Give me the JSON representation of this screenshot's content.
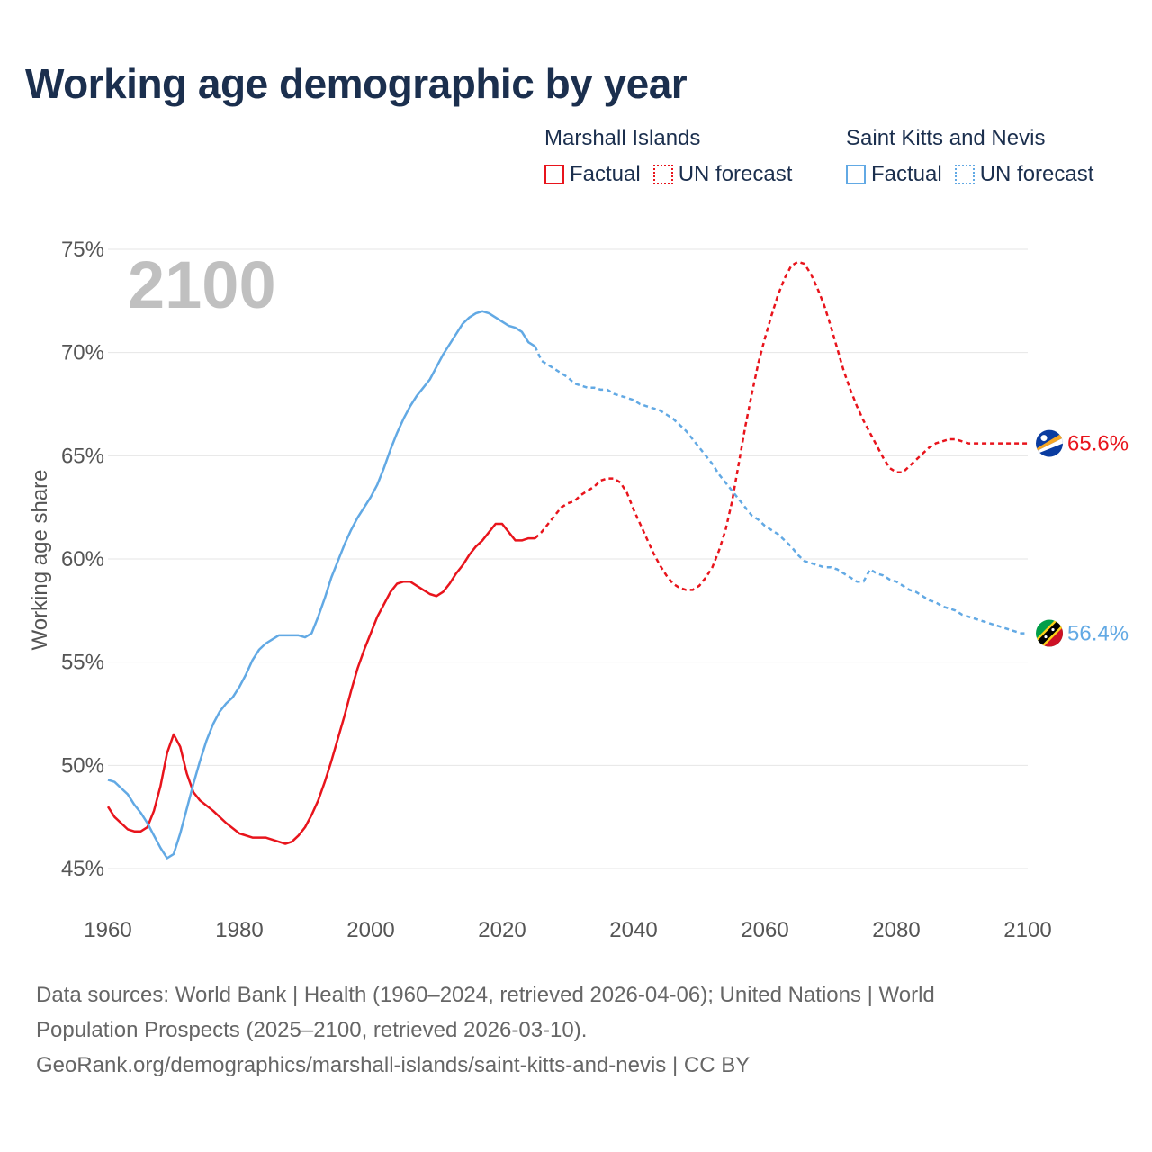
{
  "title": "Working age demographic by year",
  "legend": [
    {
      "group": "Marshall Islands",
      "color": "#e8141c",
      "factual_label": "Factual",
      "forecast_label": "UN forecast"
    },
    {
      "group": "Saint Kitts and Nevis",
      "color": "#62a9e4",
      "factual_label": "Factual",
      "forecast_label": "UN forecast"
    }
  ],
  "year_watermark": "2100",
  "sources": {
    "line1": "Data sources: World Bank | Health (1960–2024, retrieved 2026-04-06); United Nations | World",
    "line2": "Population Prospects (2025–2100, retrieved 2026-03-10).",
    "line3": "GeoRank.org/demographics/marshall-islands/saint-kitts-and-nevis | CC BY"
  },
  "chart_data": {
    "type": "line",
    "title": "Working age demographic by year",
    "xlabel": "",
    "ylabel": "Working age share",
    "xlim": [
      1960,
      2100
    ],
    "ylim": [
      45,
      75
    ],
    "x_ticks": [
      1960,
      1980,
      2000,
      2020,
      2040,
      2060,
      2080,
      2100
    ],
    "y_ticks": [
      45,
      50,
      55,
      60,
      65,
      70,
      75
    ],
    "y_tick_labels": [
      "45%",
      "50%",
      "55%",
      "60%",
      "65%",
      "70%",
      "75%"
    ],
    "grid": true,
    "forecast_start_year": 2025,
    "series": [
      {
        "name": "Marshall Islands",
        "color": "#e8141c",
        "end_label": "65.6%",
        "points": [
          [
            1960,
            48.0
          ],
          [
            1961,
            47.5
          ],
          [
            1963,
            46.9
          ],
          [
            1964,
            46.8
          ],
          [
            1965,
            46.8
          ],
          [
            1966,
            47.0
          ],
          [
            1967,
            47.8
          ],
          [
            1968,
            49.0
          ],
          [
            1969,
            50.6
          ],
          [
            1970,
            51.5
          ],
          [
            1971,
            50.9
          ],
          [
            1972,
            49.6
          ],
          [
            1973,
            48.7
          ],
          [
            1974,
            48.3
          ],
          [
            1976,
            47.8
          ],
          [
            1978,
            47.2
          ],
          [
            1980,
            46.7
          ],
          [
            1982,
            46.5
          ],
          [
            1984,
            46.5
          ],
          [
            1986,
            46.3
          ],
          [
            1987,
            46.2
          ],
          [
            1988,
            46.3
          ],
          [
            1989,
            46.6
          ],
          [
            1990,
            47.0
          ],
          [
            1991,
            47.6
          ],
          [
            1992,
            48.3
          ],
          [
            1993,
            49.2
          ],
          [
            1994,
            50.2
          ],
          [
            1995,
            51.3
          ],
          [
            1996,
            52.4
          ],
          [
            1997,
            53.6
          ],
          [
            1998,
            54.7
          ],
          [
            1999,
            55.6
          ],
          [
            2000,
            56.4
          ],
          [
            2001,
            57.2
          ],
          [
            2002,
            57.8
          ],
          [
            2003,
            58.4
          ],
          [
            2004,
            58.8
          ],
          [
            2005,
            58.9
          ],
          [
            2006,
            58.9
          ],
          [
            2007,
            58.7
          ],
          [
            2008,
            58.5
          ],
          [
            2009,
            58.3
          ],
          [
            2010,
            58.2
          ],
          [
            2011,
            58.4
          ],
          [
            2012,
            58.8
          ],
          [
            2013,
            59.3
          ],
          [
            2014,
            59.7
          ],
          [
            2015,
            60.2
          ],
          [
            2016,
            60.6
          ],
          [
            2017,
            60.9
          ],
          [
            2018,
            61.3
          ],
          [
            2019,
            61.7
          ],
          [
            2020,
            61.7
          ],
          [
            2021,
            61.3
          ],
          [
            2022,
            60.9
          ],
          [
            2023,
            60.9
          ],
          [
            2024,
            61.0
          ],
          [
            2025,
            61.0
          ],
          [
            2026,
            61.3
          ],
          [
            2027,
            61.7
          ],
          [
            2028,
            62.1
          ],
          [
            2029,
            62.5
          ],
          [
            2030,
            62.7
          ],
          [
            2031,
            62.8
          ],
          [
            2032,
            63.1
          ],
          [
            2033,
            63.3
          ],
          [
            2034,
            63.5
          ],
          [
            2035,
            63.8
          ],
          [
            2036,
            63.9
          ],
          [
            2037,
            63.9
          ],
          [
            2038,
            63.7
          ],
          [
            2039,
            63.2
          ],
          [
            2040,
            62.4
          ],
          [
            2041,
            61.7
          ],
          [
            2042,
            61.0
          ],
          [
            2043,
            60.3
          ],
          [
            2044,
            59.7
          ],
          [
            2045,
            59.2
          ],
          [
            2046,
            58.8
          ],
          [
            2047,
            58.6
          ],
          [
            2048,
            58.5
          ],
          [
            2049,
            58.5
          ],
          [
            2050,
            58.7
          ],
          [
            2051,
            59.1
          ],
          [
            2052,
            59.6
          ],
          [
            2053,
            60.4
          ],
          [
            2054,
            61.4
          ],
          [
            2055,
            62.8
          ],
          [
            2056,
            64.6
          ],
          [
            2057,
            66.4
          ],
          [
            2058,
            68.0
          ],
          [
            2059,
            69.5
          ],
          [
            2060,
            70.7
          ],
          [
            2061,
            71.8
          ],
          [
            2062,
            72.8
          ],
          [
            2063,
            73.6
          ],
          [
            2064,
            74.2
          ],
          [
            2065,
            74.4
          ],
          [
            2066,
            74.3
          ],
          [
            2067,
            73.8
          ],
          [
            2068,
            73.1
          ],
          [
            2069,
            72.3
          ],
          [
            2070,
            71.3
          ],
          [
            2071,
            70.2
          ],
          [
            2072,
            69.1
          ],
          [
            2073,
            68.2
          ],
          [
            2074,
            67.4
          ],
          [
            2075,
            66.7
          ],
          [
            2076,
            66.1
          ],
          [
            2077,
            65.5
          ],
          [
            2078,
            64.9
          ],
          [
            2079,
            64.4
          ],
          [
            2080,
            64.2
          ],
          [
            2081,
            64.2
          ],
          [
            2082,
            64.5
          ],
          [
            2083,
            64.8
          ],
          [
            2084,
            65.1
          ],
          [
            2085,
            65.4
          ],
          [
            2086,
            65.6
          ],
          [
            2087,
            65.7
          ],
          [
            2088,
            65.8
          ],
          [
            2089,
            65.8
          ],
          [
            2090,
            65.7
          ],
          [
            2091,
            65.6
          ],
          [
            2092,
            65.6
          ],
          [
            2100,
            65.6
          ]
        ]
      },
      {
        "name": "Saint Kitts and Nevis",
        "color": "#62a9e4",
        "end_label": "56.4%",
        "points": [
          [
            1960,
            49.3
          ],
          [
            1961,
            49.2
          ],
          [
            1962,
            48.9
          ],
          [
            1963,
            48.6
          ],
          [
            1964,
            48.1
          ],
          [
            1965,
            47.7
          ],
          [
            1966,
            47.2
          ],
          [
            1967,
            46.6
          ],
          [
            1968,
            46.0
          ],
          [
            1969,
            45.5
          ],
          [
            1970,
            45.7
          ],
          [
            1971,
            46.7
          ],
          [
            1972,
            47.9
          ],
          [
            1973,
            49.1
          ],
          [
            1974,
            50.2
          ],
          [
            1975,
            51.2
          ],
          [
            1976,
            52.0
          ],
          [
            1977,
            52.6
          ],
          [
            1978,
            53.0
          ],
          [
            1979,
            53.3
          ],
          [
            1980,
            53.8
          ],
          [
            1981,
            54.4
          ],
          [
            1982,
            55.1
          ],
          [
            1983,
            55.6
          ],
          [
            1984,
            55.9
          ],
          [
            1985,
            56.1
          ],
          [
            1986,
            56.3
          ],
          [
            1987,
            56.3
          ],
          [
            1988,
            56.3
          ],
          [
            1989,
            56.3
          ],
          [
            1990,
            56.2
          ],
          [
            1991,
            56.4
          ],
          [
            1992,
            57.2
          ],
          [
            1993,
            58.1
          ],
          [
            1994,
            59.1
          ],
          [
            1995,
            59.9
          ],
          [
            1996,
            60.7
          ],
          [
            1997,
            61.4
          ],
          [
            1998,
            62.0
          ],
          [
            1999,
            62.5
          ],
          [
            2000,
            63.0
          ],
          [
            2001,
            63.6
          ],
          [
            2002,
            64.4
          ],
          [
            2003,
            65.3
          ],
          [
            2004,
            66.1
          ],
          [
            2005,
            66.8
          ],
          [
            2006,
            67.4
          ],
          [
            2007,
            67.9
          ],
          [
            2008,
            68.3
          ],
          [
            2009,
            68.7
          ],
          [
            2010,
            69.3
          ],
          [
            2011,
            69.9
          ],
          [
            2012,
            70.4
          ],
          [
            2013,
            70.9
          ],
          [
            2014,
            71.4
          ],
          [
            2015,
            71.7
          ],
          [
            2016,
            71.9
          ],
          [
            2017,
            72.0
          ],
          [
            2018,
            71.9
          ],
          [
            2019,
            71.7
          ],
          [
            2020,
            71.5
          ],
          [
            2021,
            71.3
          ],
          [
            2022,
            71.2
          ],
          [
            2023,
            71.0
          ],
          [
            2024,
            70.5
          ],
          [
            2025,
            70.3
          ],
          [
            2026,
            69.6
          ],
          [
            2027,
            69.4
          ],
          [
            2028,
            69.2
          ],
          [
            2029,
            69.0
          ],
          [
            2030,
            68.8
          ],
          [
            2031,
            68.5
          ],
          [
            2032,
            68.4
          ],
          [
            2033,
            68.3
          ],
          [
            2034,
            68.3
          ],
          [
            2035,
            68.2
          ],
          [
            2036,
            68.2
          ],
          [
            2037,
            68.0
          ],
          [
            2038,
            67.9
          ],
          [
            2039,
            67.8
          ],
          [
            2040,
            67.7
          ],
          [
            2041,
            67.5
          ],
          [
            2042,
            67.4
          ],
          [
            2043,
            67.3
          ],
          [
            2044,
            67.2
          ],
          [
            2045,
            67.0
          ],
          [
            2046,
            66.8
          ],
          [
            2047,
            66.5
          ],
          [
            2048,
            66.2
          ],
          [
            2049,
            65.8
          ],
          [
            2050,
            65.4
          ],
          [
            2051,
            65.0
          ],
          [
            2052,
            64.6
          ],
          [
            2053,
            64.1
          ],
          [
            2054,
            63.7
          ],
          [
            2055,
            63.3
          ],
          [
            2056,
            62.9
          ],
          [
            2057,
            62.5
          ],
          [
            2058,
            62.1
          ],
          [
            2059,
            61.9
          ],
          [
            2060,
            61.6
          ],
          [
            2061,
            61.4
          ],
          [
            2062,
            61.2
          ],
          [
            2063,
            60.9
          ],
          [
            2064,
            60.6
          ],
          [
            2065,
            60.2
          ],
          [
            2066,
            59.9
          ],
          [
            2067,
            59.8
          ],
          [
            2068,
            59.7
          ],
          [
            2069,
            59.6
          ],
          [
            2070,
            59.6
          ],
          [
            2071,
            59.5
          ],
          [
            2072,
            59.3
          ],
          [
            2073,
            59.1
          ],
          [
            2074,
            58.9
          ],
          [
            2075,
            58.9
          ],
          [
            2076,
            59.5
          ],
          [
            2077,
            59.3
          ],
          [
            2078,
            59.2
          ],
          [
            2079,
            59.0
          ],
          [
            2080,
            58.9
          ],
          [
            2081,
            58.7
          ],
          [
            2082,
            58.5
          ],
          [
            2083,
            58.4
          ],
          [
            2084,
            58.2
          ],
          [
            2085,
            58.0
          ],
          [
            2086,
            57.9
          ],
          [
            2087,
            57.7
          ],
          [
            2088,
            57.6
          ],
          [
            2089,
            57.5
          ],
          [
            2090,
            57.3
          ],
          [
            2091,
            57.2
          ],
          [
            2092,
            57.1
          ],
          [
            2093,
            57.0
          ],
          [
            2094,
            56.9
          ],
          [
            2095,
            56.8
          ],
          [
            2096,
            56.7
          ],
          [
            2097,
            56.6
          ],
          [
            2098,
            56.5
          ],
          [
            2099,
            56.4
          ],
          [
            2100,
            56.4
          ]
        ]
      }
    ]
  }
}
